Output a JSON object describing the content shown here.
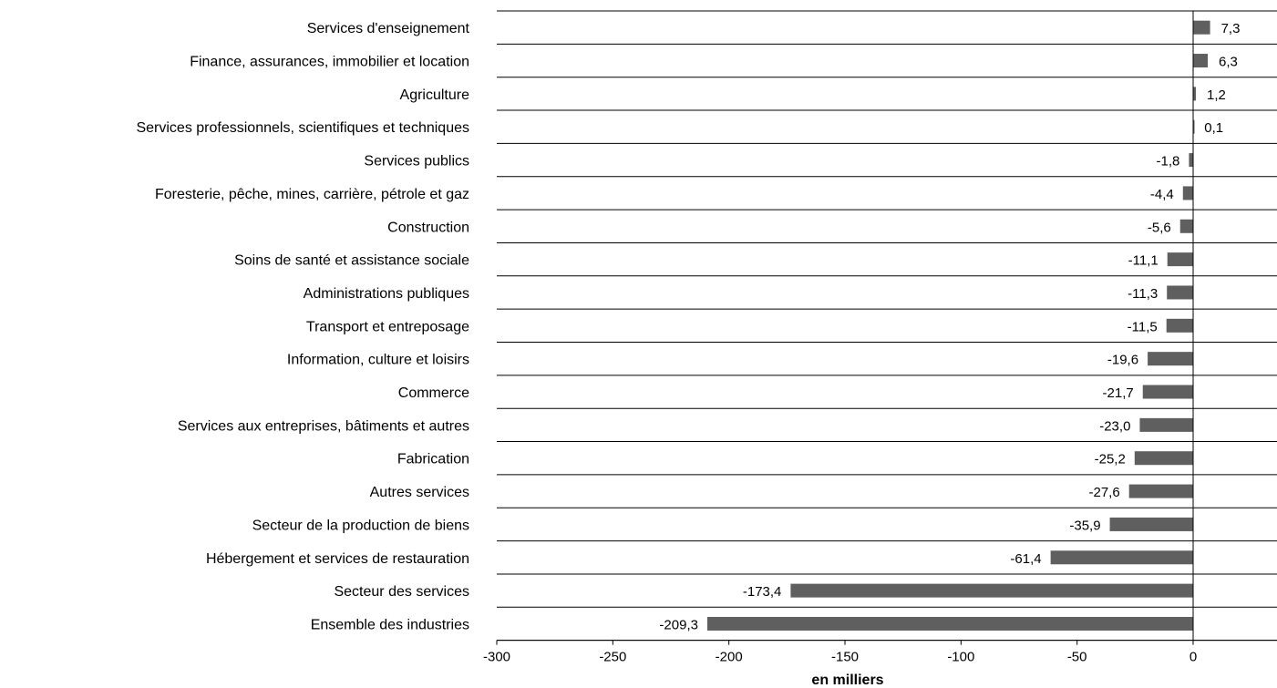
{
  "chart_data": {
    "type": "bar",
    "orientation": "horizontal",
    "title": "",
    "xlabel": "en milliers",
    "ylabel": "",
    "xlim": [
      -300,
      0
    ],
    "xticks": [
      "-300",
      "-250",
      "-200",
      "-150",
      "-100",
      "-50",
      "0"
    ],
    "xtick_values": [
      -300,
      -250,
      -200,
      -150,
      -100,
      -50,
      0
    ],
    "grid": "horizontal lines between categories",
    "legend": "none",
    "categories": [
      "Services d'enseignement",
      "Finance, assurances, immobilier et location",
      "Agriculture",
      "Services professionnels, scientifiques et techniques",
      "Services publics",
      "Foresterie, pêche, mines, carrière, pétrole et gaz",
      "Construction",
      "Soins de santé et assistance sociale",
      "Administrations publiques",
      "Transport et entreposage",
      "Information, culture et loisirs",
      "Commerce",
      "Services aux entreprises, bâtiments et autres",
      "Fabrication",
      "Autres services",
      "Secteur de la production de biens",
      "Hébergement et services de restauration",
      "Secteur des services",
      "Ensemble des industries"
    ],
    "values": [
      7.3,
      6.3,
      1.2,
      0.1,
      -1.8,
      -4.4,
      -5.6,
      -11.1,
      -11.3,
      -11.5,
      -19.6,
      -21.7,
      -23.0,
      -25.2,
      -27.6,
      -35.9,
      -61.4,
      -173.4,
      -209.3
    ],
    "value_labels": [
      "7,3",
      "6,3",
      "1,2",
      "0,1",
      "-1,8",
      "-4,4",
      "-5,6",
      "-11,1",
      "-11,3",
      "-11,5",
      "-19,6",
      "-21,7",
      "-23,0",
      "-25,2",
      "-27,6",
      "-35,9",
      "-61,4",
      "-173,4",
      "-209,3"
    ],
    "colors": {
      "bar": "#5f5f5f",
      "grid": "#000000",
      "text": "#000000"
    }
  }
}
